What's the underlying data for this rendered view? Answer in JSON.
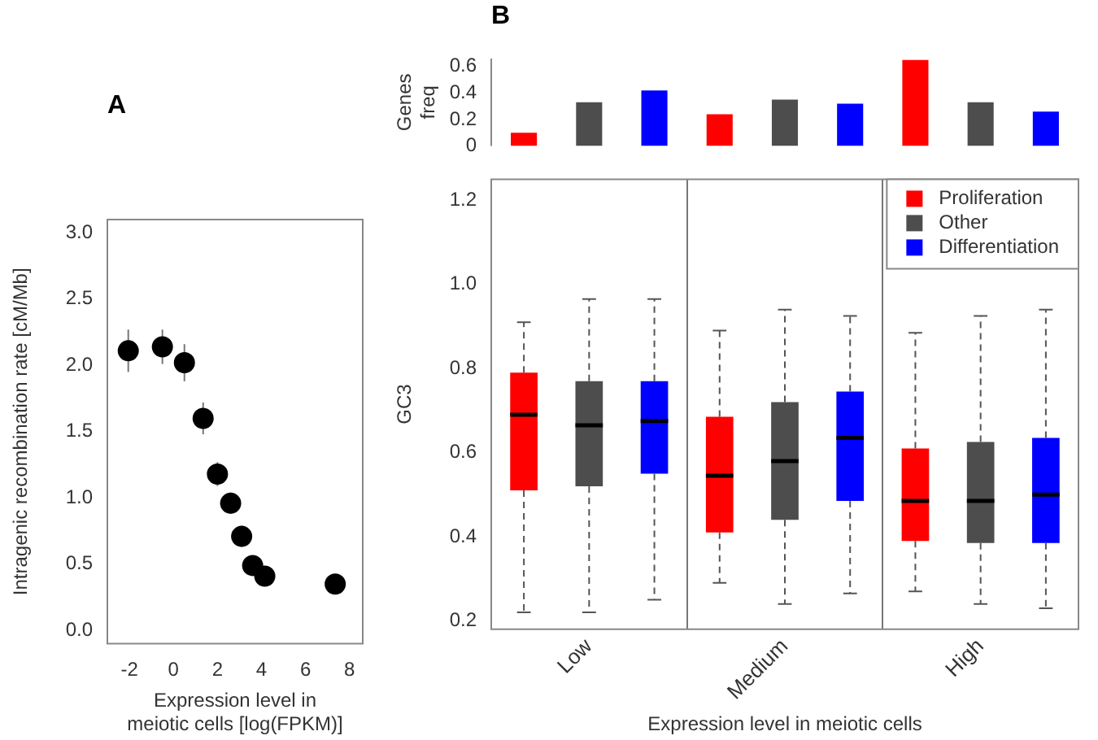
{
  "chart_data": [
    {
      "type": "scatter",
      "title": "A",
      "xlabel": "Expression level in\nmeiotic cells [log(FPKM)]",
      "ylabel": "Intragenic recombination rate [cM/Mb]",
      "xlim": [
        -3,
        8.6
      ],
      "xticks": [
        -2,
        0,
        2,
        4,
        6,
        8
      ],
      "ylim": [
        -0.1,
        3.1
      ],
      "yticks": [
        {
          "value": 0,
          "label": "0.0"
        },
        0.5,
        {
          "value": 1,
          "label": "1.0"
        },
        1.5,
        {
          "value": 2,
          "label": "2.0"
        },
        2.5,
        {
          "value": 3,
          "label": "3.0"
        }
      ],
      "marker": "circle",
      "grid": false,
      "legend": false,
      "series": [
        {
          "color": "#000000",
          "x": [
            -2.05,
            -0.5,
            0.5,
            1.35,
            2.0,
            2.6,
            3.1,
            3.6,
            4.15,
            7.35
          ],
          "values": [
            2.11,
            2.14,
            2.02,
            1.6,
            1.18,
            0.96,
            0.71,
            0.49,
            0.41,
            0.35
          ],
          "errors": [
            0.16,
            0.13,
            0.14,
            0.12,
            0.09,
            0.08,
            0.08,
            0.05,
            0.04,
            0.03
          ]
        }
      ]
    },
    {
      "type": "bar",
      "title": "B",
      "ylabel": "Genes\nfreq",
      "categories": [
        null,
        null,
        null
      ],
      "ylim": [
        0,
        0.66
      ],
      "yticks": [
        0,
        0.2,
        0.4,
        0.6
      ],
      "tick_labels": "y",
      "grid": false,
      "legend": false,
      "series": [
        {
          "color": "#ff0000",
          "values": [
            0.1,
            0.24,
            0.65
          ]
        },
        {
          "color": "#4d4d4d",
          "values": [
            0.33,
            0.35,
            0.33
          ]
        },
        {
          "color": "#0000ff",
          "values": [
            0.42,
            0.32,
            0.26
          ]
        }
      ]
    },
    {
      "type": "box",
      "xlabel": "Expression level in meiotic cells",
      "ylabel": "GC3",
      "categories": [
        "Low",
        "Medium",
        "High"
      ],
      "ylim": [
        0.18,
        1.25
      ],
      "yticks": [
        0.2,
        0.4,
        0.6,
        0.8,
        {
          "value": 1,
          "label": "1.0"
        },
        1.2
      ],
      "grid": "x",
      "legend": "top right",
      "series": [
        {
          "name": "Proliferation",
          "color": "#ff0000",
          "boxes": [
            {
              "low": 0.22,
              "q1": 0.51,
              "median": 0.69,
              "q3": 0.79,
              "high": 0.91
            },
            {
              "low": 0.29,
              "q1": 0.41,
              "median": 0.545,
              "q3": 0.685,
              "high": 0.89
            },
            {
              "low": 0.27,
              "q1": 0.39,
              "median": 0.485,
              "q3": 0.61,
              "high": 0.885
            }
          ]
        },
        {
          "name": "Other",
          "color": "#4d4d4d",
          "boxes": [
            {
              "low": 0.22,
              "q1": 0.52,
              "median": 0.665,
              "q3": 0.77,
              "high": 0.965
            },
            {
              "low": 0.24,
              "q1": 0.44,
              "median": 0.58,
              "q3": 0.72,
              "high": 0.94
            },
            {
              "low": 0.24,
              "q1": 0.385,
              "median": 0.485,
              "q3": 0.625,
              "high": 0.925
            }
          ]
        },
        {
          "name": "Differentiation",
          "color": "#0000ff",
          "boxes": [
            {
              "low": 0.25,
              "q1": 0.55,
              "median": 0.675,
              "q3": 0.77,
              "high": 0.965
            },
            {
              "low": 0.265,
              "q1": 0.485,
              "median": 0.635,
              "q3": 0.745,
              "high": 0.925
            },
            {
              "low": 0.23,
              "q1": 0.385,
              "median": 0.5,
              "q3": 0.635,
              "high": 0.94
            }
          ]
        }
      ]
    }
  ]
}
